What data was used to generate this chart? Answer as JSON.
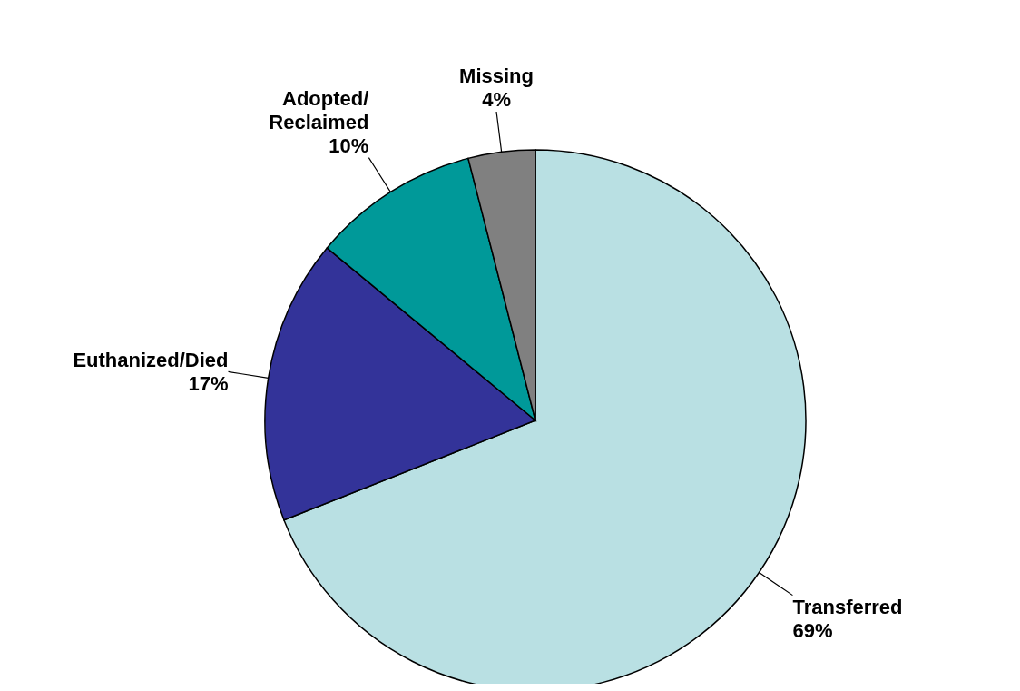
{
  "chart_data": {
    "type": "pie",
    "categories": [
      "Transferred",
      "Euthanized/Died",
      "Adopted/\nReclaimed",
      "Missing"
    ],
    "values": [
      69,
      17,
      10,
      4
    ],
    "colors": [
      "#b9e0e3",
      "#333399",
      "#009999",
      "#808080"
    ],
    "value_labels": [
      "69%",
      "17%",
      "10%",
      "4%"
    ],
    "legend": false
  }
}
